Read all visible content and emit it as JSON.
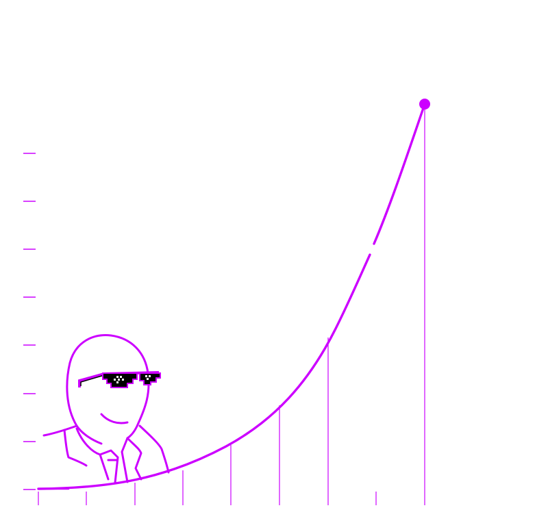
{
  "colors": {
    "accent": "#cc00ff",
    "background": "#ffffff",
    "glasses": "#000000"
  },
  "icons": {
    "figure": "person-with-sunglasses-icon",
    "endpoint": "endpoint-dot-icon"
  }
}
